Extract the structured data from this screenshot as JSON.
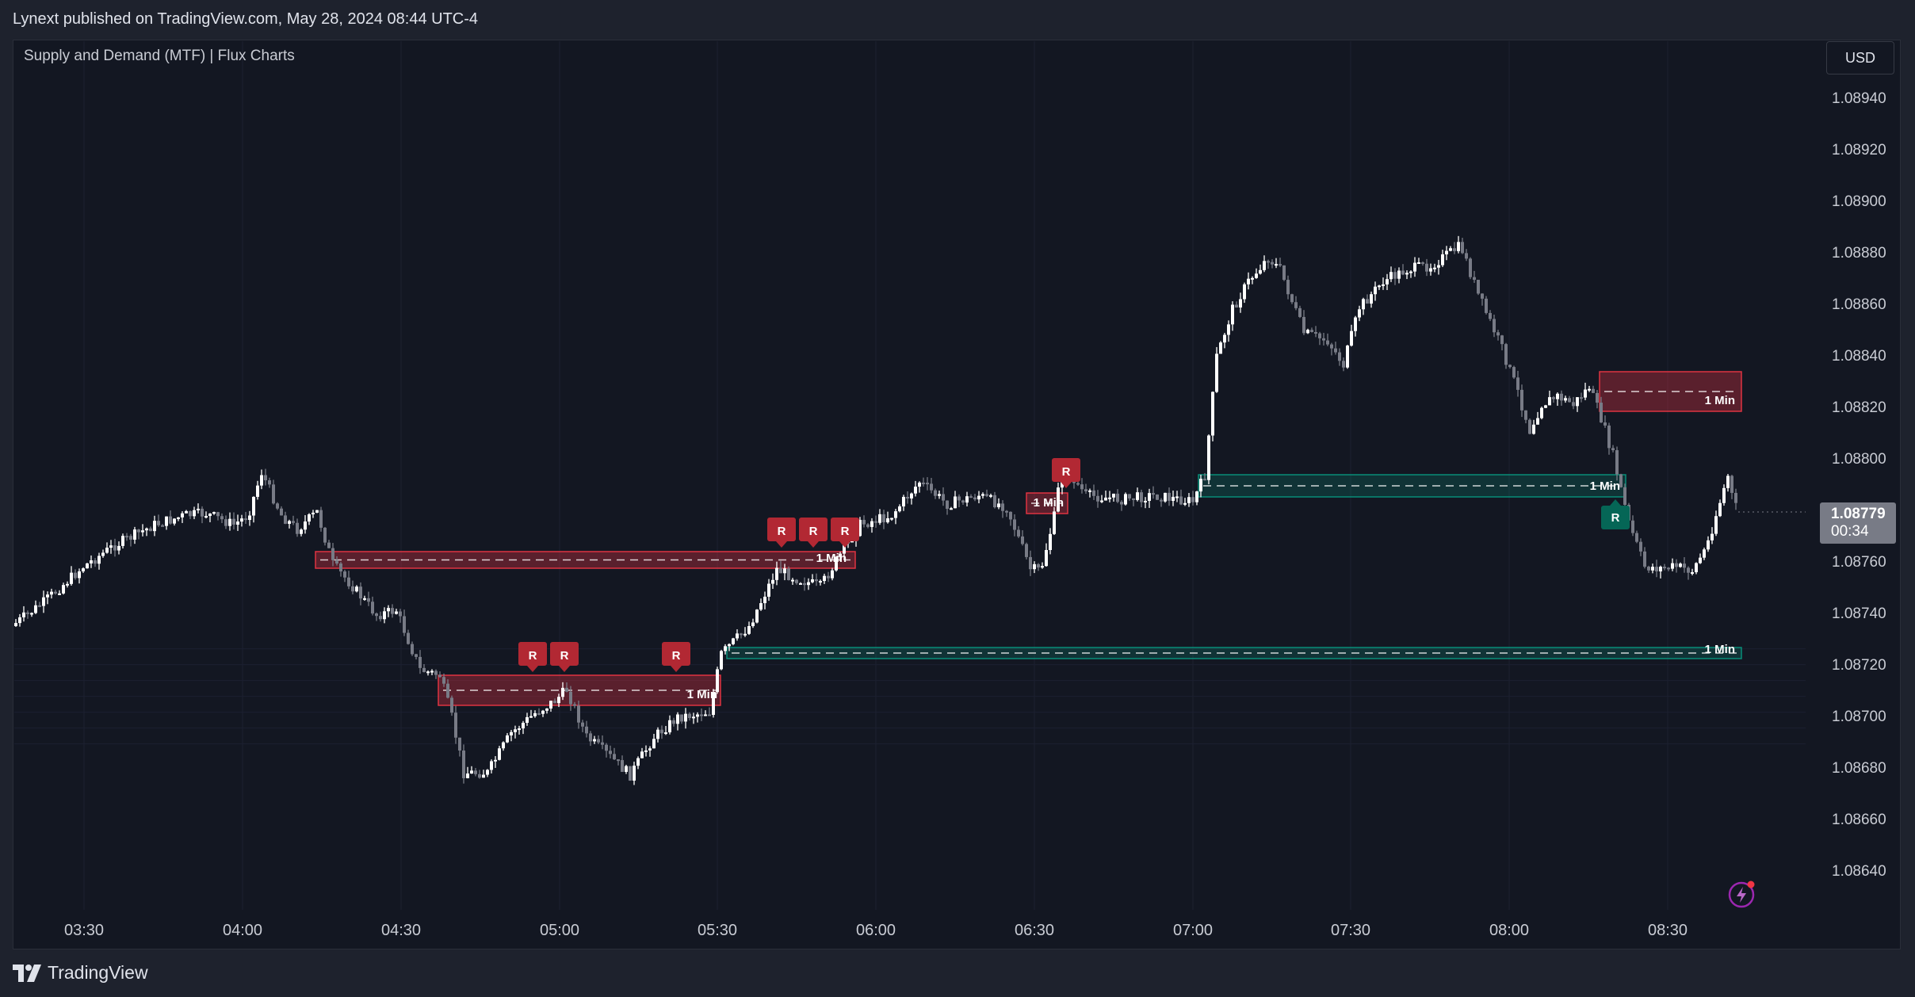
{
  "header": {
    "publish_text": "Lynext published on TradingView.com, May 28, 2024 08:44 UTC-4"
  },
  "chart": {
    "indicator_title": "Supply and Demand (MTF) | Flux Charts",
    "currency_label": "USD",
    "current_price": {
      "value": "1.08779",
      "countdown": "00:34"
    },
    "price_ticks": [
      "1.08940",
      "1.08920",
      "1.08900",
      "1.08880",
      "1.08860",
      "1.08840",
      "1.08820",
      "1.08800",
      "1.08760",
      "1.08740",
      "1.08720",
      "1.08700",
      "1.08680",
      "1.08660",
      "1.08640"
    ],
    "time_ticks": [
      "03:30",
      "04:00",
      "04:30",
      "05:00",
      "05:30",
      "06:00",
      "06:30",
      "07:00",
      "07:30",
      "08:00",
      "08:30"
    ],
    "zone_label": "1 Min",
    "retest_label": "R",
    "colors": {
      "bull": "#ffffff",
      "bear": "#787b86",
      "supply": "#f23645",
      "demand": "#089981",
      "background": "#131722"
    }
  },
  "footer": {
    "brand": "TradingView"
  },
  "icons": {
    "logo": "tradingview-logo-icon",
    "flash": "lightning-icon"
  }
}
